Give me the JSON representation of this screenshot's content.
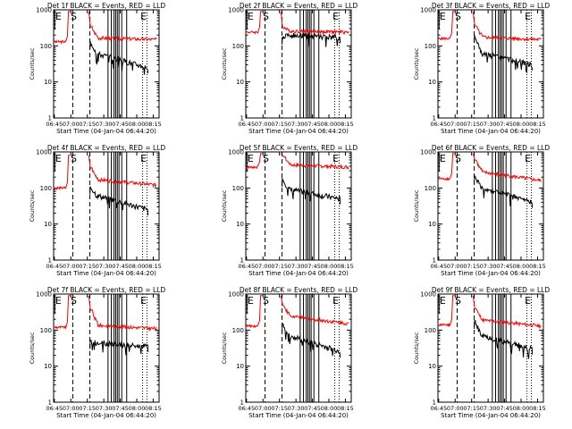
{
  "chart_data": {
    "type": "line",
    "scale": "log",
    "colors": {
      "events": "#000000",
      "lld": "#ff0000"
    },
    "ylabel": "Counts/sec",
    "xlabel": "Start Time (04-Jan-04 06:44:20)",
    "ylim": [
      1,
      1000
    ],
    "xlim_minutes": [
      0,
      96
    ],
    "y_ticks": [
      "1",
      "10",
      "100",
      "1000"
    ],
    "x_ticks": [
      {
        "m": 0.67,
        "label": "06:45"
      },
      {
        "m": 15.67,
        "label": "07:00"
      },
      {
        "m": 30.67,
        "label": "07:15"
      },
      {
        "m": 45.67,
        "label": "07:30"
      },
      {
        "m": 60.67,
        "label": "07:45"
      },
      {
        "m": 75.67,
        "label": "08:00"
      },
      {
        "m": 90.67,
        "label": "08:15"
      }
    ],
    "panels": [
      {
        "title": "Det 1f BLACK = Events, RED = LLD",
        "markers": [
          {
            "m": 3.5,
            "label": "E"
          },
          {
            "m": 17.5,
            "label": "S"
          },
          {
            "m": 81,
            "label": "E"
          }
        ],
        "dashed": [
          17.5,
          33
        ],
        "solid": [
          49.5,
          52.5,
          55,
          56.5,
          58,
          59.5,
          62,
          66.5
        ],
        "dotted": [
          81,
          85
        ],
        "lld": {
          "pre_level": 130,
          "peak": 900,
          "rise_start": 11,
          "drop": 15,
          "gap_end": 32,
          "start": 330,
          "level": 170,
          "end_level": 150
        },
        "events": {
          "start": 135,
          "level": 70,
          "end_level": 25,
          "from": 33,
          "to": 86
        }
      },
      {
        "title": "Det 2f BLACK = Events, RED = LLD",
        "markers": [
          {
            "m": 3.5,
            "label": "E"
          },
          {
            "m": 17.5,
            "label": "S"
          },
          {
            "m": 81,
            "label": "E"
          }
        ],
        "dashed": [
          17.5,
          33
        ],
        "solid": [
          49.5,
          52.5,
          55,
          56.5,
          58,
          59.5,
          62,
          66.5
        ],
        "dotted": [
          81,
          85
        ],
        "lld": {
          "pre_level": 240,
          "peak": 900,
          "rise_start": 11,
          "drop": 15,
          "gap_end": 32,
          "start": 330,
          "level": 260,
          "end_level": 240
        },
        "events": {
          "start": 180,
          "level": 200,
          "end_level": 170,
          "from": 33,
          "to": 86
        }
      },
      {
        "title": "Det 3f BLACK = Events, RED = LLD",
        "markers": [
          {
            "m": 3.5,
            "label": "E"
          },
          {
            "m": 17.5,
            "label": "S"
          },
          {
            "m": 81,
            "label": "E"
          }
        ],
        "dashed": [
          17.5,
          33
        ],
        "solid": [
          49.5,
          52.5,
          55,
          56.5,
          58,
          59.5,
          62,
          66.5
        ],
        "dotted": [
          81,
          85
        ],
        "lld": {
          "pre_level": 160,
          "peak": 900,
          "rise_start": 11,
          "drop": 15,
          "gap_end": 32,
          "start": 360,
          "level": 180,
          "end_level": 150
        },
        "events": {
          "start": 200,
          "level": 70,
          "end_level": 30,
          "from": 33,
          "to": 86
        }
      },
      {
        "title": "Det 4f BLACK = Events, RED = LLD",
        "markers": [
          {
            "m": 3.5,
            "label": "E"
          },
          {
            "m": 17.5,
            "label": "S"
          },
          {
            "m": 81,
            "label": "E"
          }
        ],
        "dashed": [
          17.5,
          33
        ],
        "solid": [
          49.5,
          52.5,
          55,
          56.5,
          58,
          59.5,
          62,
          66.5
        ],
        "dotted": [
          81,
          85
        ],
        "lld": {
          "pre_level": 100,
          "peak": 800,
          "rise_start": 11,
          "drop": 15,
          "gap_end": 32,
          "start": 350,
          "level": 180,
          "end_level": 120
        },
        "events": {
          "start": 110,
          "level": 70,
          "end_level": 25,
          "from": 33,
          "to": 86
        }
      },
      {
        "title": "Det 5f BLACK = Events, RED = LLD",
        "markers": [
          {
            "m": 3.5,
            "label": "E"
          },
          {
            "m": 17.5,
            "label": "S"
          },
          {
            "m": 81,
            "label": "E"
          }
        ],
        "dashed": [
          17.5,
          33
        ],
        "solid": [
          49.5,
          52.5,
          55,
          56.5,
          58,
          59.5,
          62,
          66.5
        ],
        "dotted": [
          81,
          85
        ],
        "lld": {
          "pre_level": 380,
          "peak": 900,
          "rise_start": 11,
          "drop": 15,
          "gap_end": 32,
          "start": 800,
          "level": 450,
          "end_level": 380
        },
        "events": {
          "start": 180,
          "level": 100,
          "end_level": 50,
          "from": 33,
          "to": 86
        }
      },
      {
        "title": "Det 6f BLACK = Events, RED = LLD",
        "markers": [
          {
            "m": 3.5,
            "label": "E"
          },
          {
            "m": 17.5,
            "label": "S"
          },
          {
            "m": 81,
            "label": "E"
          }
        ],
        "dashed": [
          17.5,
          33
        ],
        "solid": [
          49.5,
          52.5,
          55,
          56.5,
          58,
          59.5,
          62,
          66.5
        ],
        "dotted": [
          81,
          85
        ],
        "lld": {
          "pre_level": 180,
          "peak": 900,
          "rise_start": 11,
          "drop": 15,
          "gap_end": 32,
          "start": 600,
          "level": 300,
          "end_level": 160
        },
        "events": {
          "start": 220,
          "level": 120,
          "end_level": 40,
          "from": 33,
          "to": 86
        }
      },
      {
        "title": "Det 7f BLACK = Events, RED = LLD",
        "markers": [
          {
            "m": 3.5,
            "label": "E"
          },
          {
            "m": 17.5,
            "label": "S"
          },
          {
            "m": 81,
            "label": "E"
          }
        ],
        "dashed": [
          17.5,
          33
        ],
        "solid": [
          49.5,
          52.5,
          55,
          56.5,
          58,
          59.5,
          62,
          66.5
        ],
        "dotted": [
          81,
          85
        ],
        "lld": {
          "pre_level": 120,
          "peak": 900,
          "rise_start": 11,
          "drop": 15,
          "gap_end": 32,
          "start": 350,
          "level": 140,
          "end_level": 110
        },
        "events": {
          "start": 50,
          "level": 45,
          "end_level": 35,
          "from": 33,
          "to": 86
        }
      },
      {
        "title": "Det 8f BLACK = Events, RED = LLD",
        "markers": [
          {
            "m": 3.5,
            "label": "E"
          },
          {
            "m": 17.5,
            "label": "S"
          },
          {
            "m": 81,
            "label": "E"
          }
        ],
        "dashed": [
          17.5,
          33
        ],
        "solid": [
          49.5,
          52.5,
          55,
          56.5,
          58,
          59.5,
          62,
          66.5
        ],
        "dotted": [
          81,
          85
        ],
        "lld": {
          "pre_level": 130,
          "peak": 900,
          "rise_start": 11,
          "drop": 15,
          "gap_end": 32,
          "start": 500,
          "level": 260,
          "end_level": 150
        },
        "events": {
          "start": 150,
          "level": 80,
          "end_level": 25,
          "from": 33,
          "to": 86
        }
      },
      {
        "title": "Det 9f BLACK = Events, RED = LLD",
        "markers": [
          {
            "m": 3.5,
            "label": "E"
          },
          {
            "m": 17.5,
            "label": "S"
          },
          {
            "m": 81,
            "label": "E"
          }
        ],
        "dashed": [
          17.5,
          33
        ],
        "solid": [
          49.5,
          52.5,
          55,
          56.5,
          58,
          59.5,
          62,
          66.5
        ],
        "dotted": [
          81,
          85
        ],
        "lld": {
          "pre_level": 140,
          "peak": 900,
          "rise_start": 11,
          "drop": 15,
          "gap_end": 32,
          "start": 400,
          "level": 200,
          "end_level": 130
        },
        "events": {
          "start": 180,
          "level": 80,
          "end_level": 30,
          "from": 33,
          "to": 86
        }
      }
    ]
  }
}
